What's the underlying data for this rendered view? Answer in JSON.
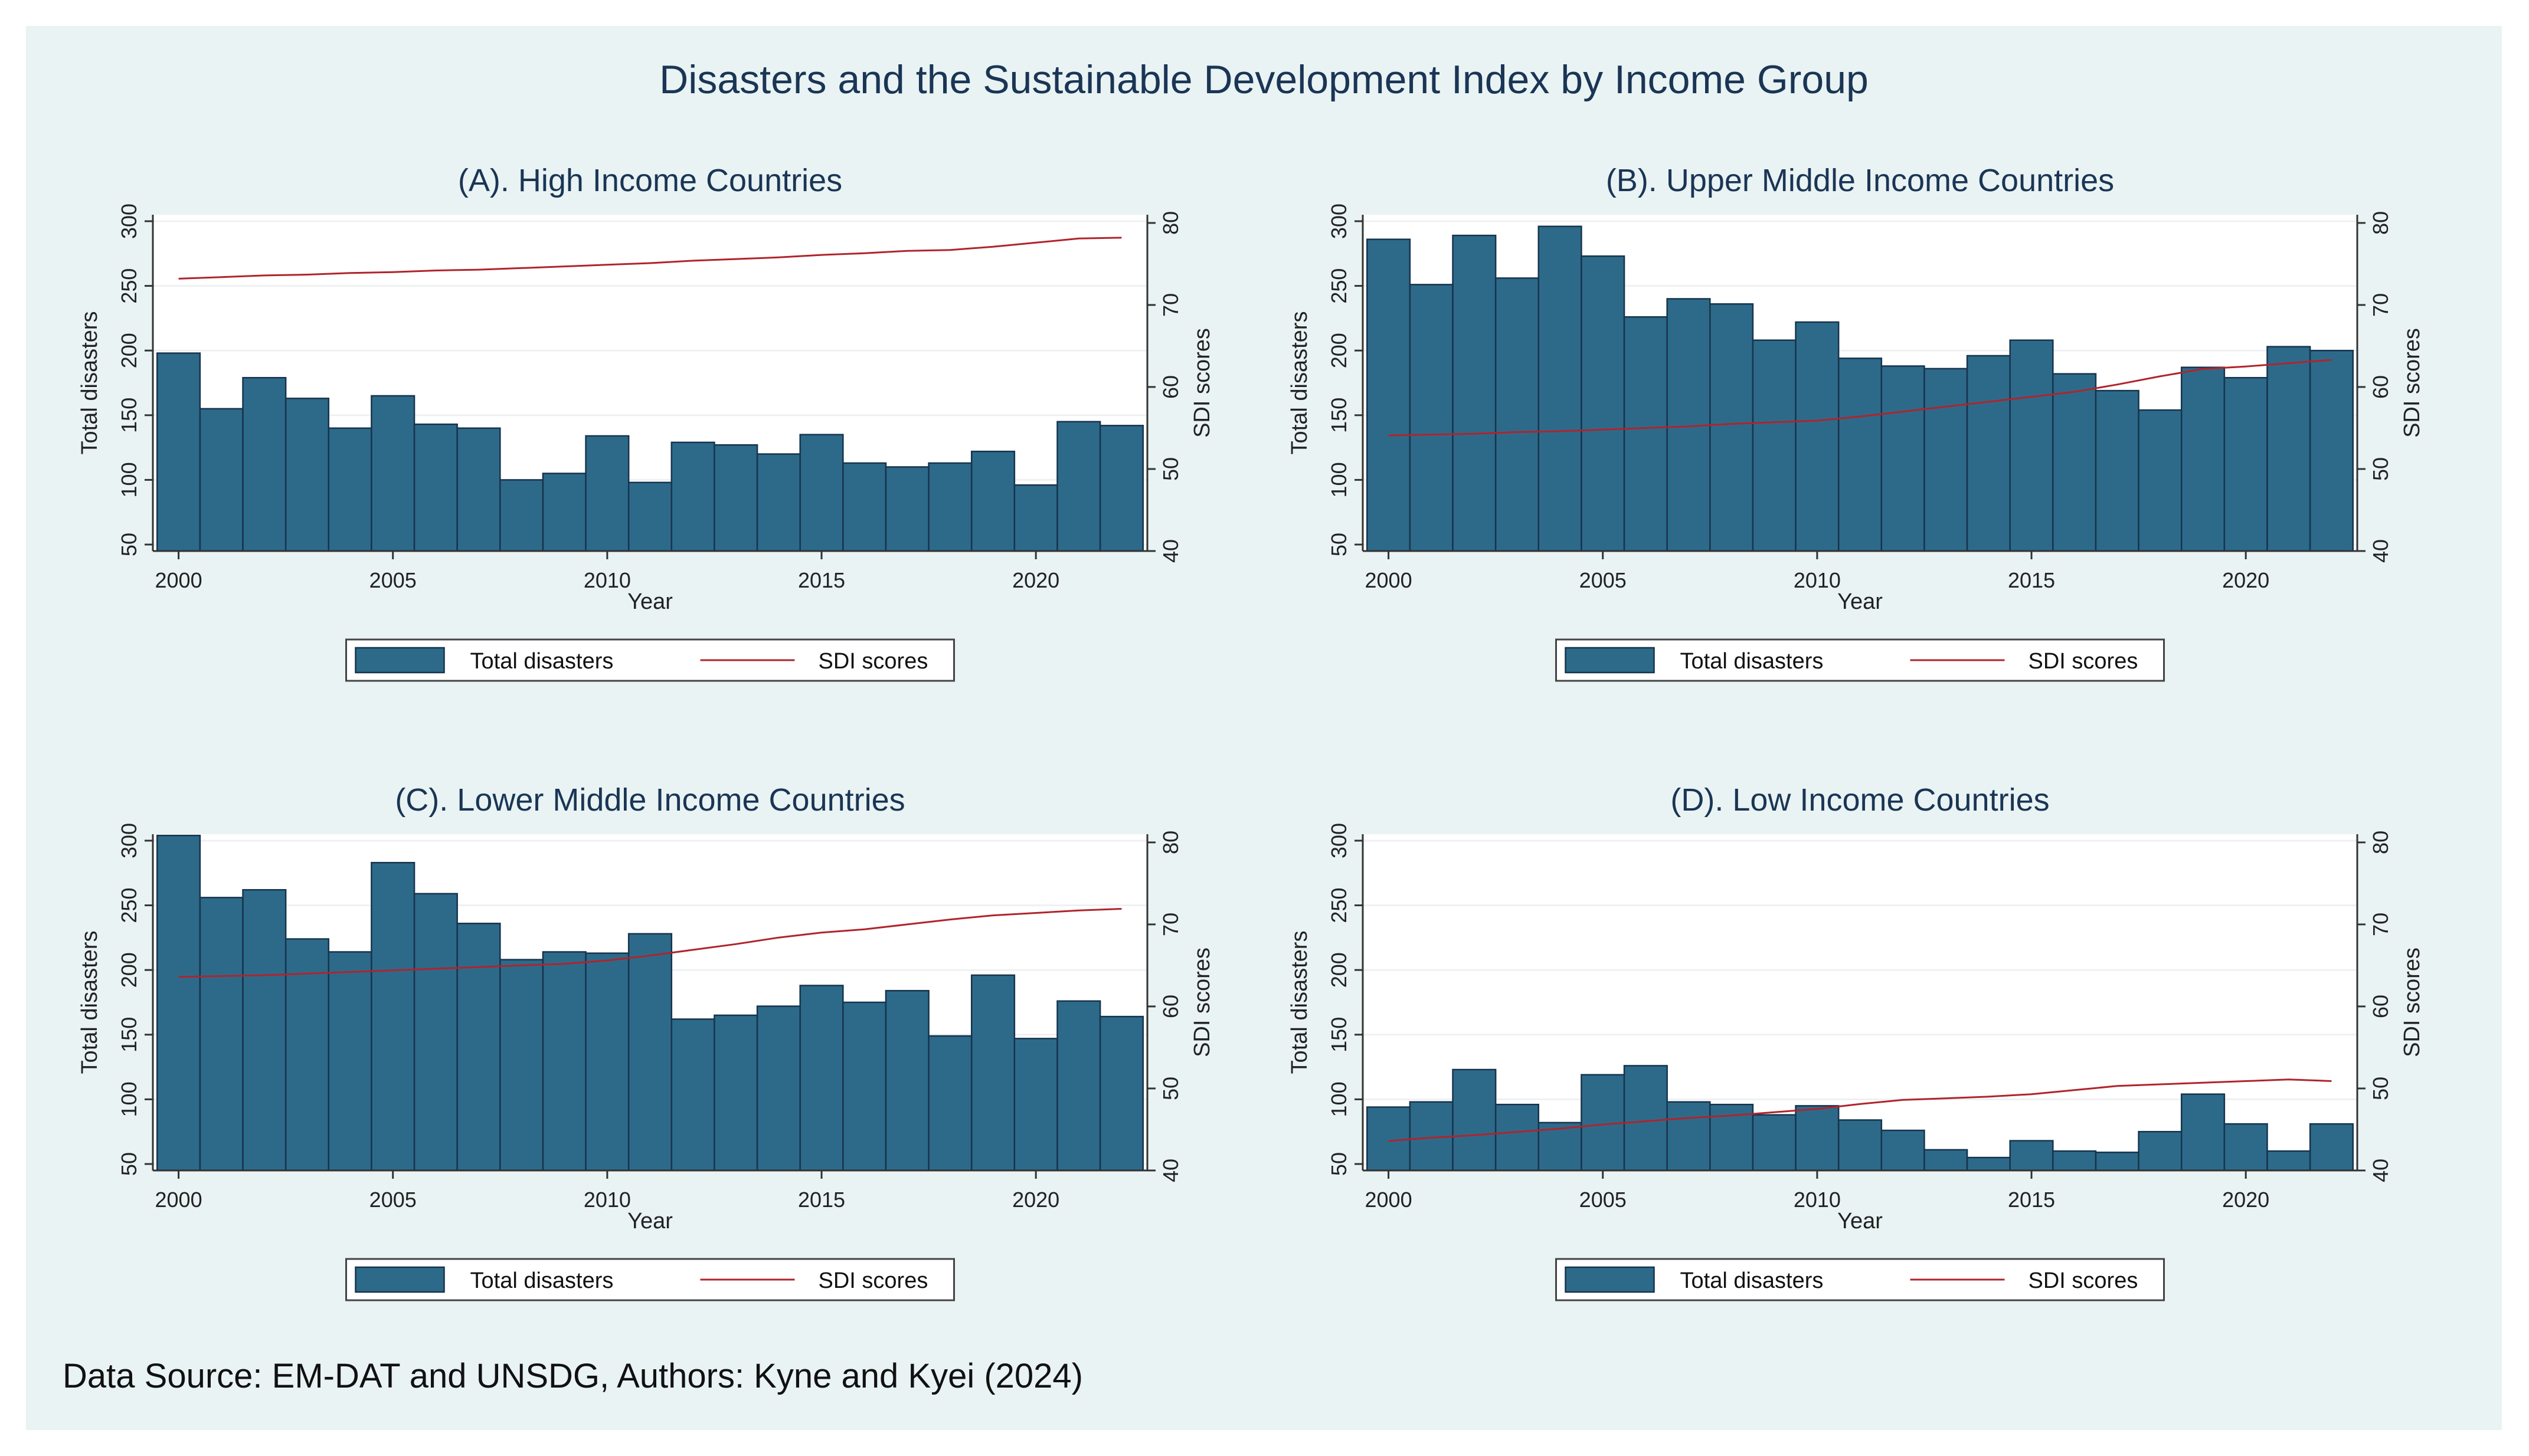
{
  "title": "Disasters and the Sustainable Development Index by Income Group",
  "source": "Data Source: EM-DAT and UNSDG, Authors: Kyne and Kyei (2024)",
  "colors": {
    "background": "#e9f3f3",
    "bar": "#2d6a8a",
    "bar_edge": "#17344d",
    "line": "#b0242c",
    "title": "#1a3555"
  },
  "chart_data": [
    {
      "type": "bar",
      "title": "(A). High Income Countries",
      "xlabel": "Year",
      "ylabel": "Total disasters",
      "y2label": "SDI scores",
      "x": [
        2000,
        2001,
        2002,
        2003,
        2004,
        2005,
        2006,
        2007,
        2008,
        2009,
        2010,
        2011,
        2012,
        2013,
        2014,
        2015,
        2016,
        2017,
        2018,
        2019,
        2020,
        2021,
        2022
      ],
      "xticks": [
        2000,
        2005,
        2010,
        2015,
        2020
      ],
      "ylim": [
        45,
        305
      ],
      "yticks": [
        50,
        100,
        150,
        200,
        250,
        300
      ],
      "y2lim": [
        40,
        81
      ],
      "y2ticks": [
        40,
        50,
        60,
        70,
        80
      ],
      "legend": [
        "Total disasters",
        "SDI scores"
      ],
      "series": [
        {
          "name": "Total disasters",
          "axis": "left",
          "values": [
            198,
            155,
            179,
            163,
            140,
            165,
            143,
            140,
            100,
            105,
            134,
            98,
            129,
            127,
            120,
            135,
            113,
            110,
            113,
            122,
            96,
            145,
            142
          ]
        },
        {
          "name": "SDI scores",
          "axis": "right",
          "values": [
            73.2,
            73.4,
            73.6,
            73.7,
            73.9,
            74.0,
            74.2,
            74.3,
            74.5,
            74.7,
            74.9,
            75.1,
            75.4,
            75.6,
            75.8,
            76.1,
            76.3,
            76.6,
            76.7,
            77.1,
            77.6,
            78.1,
            78.2
          ]
        }
      ]
    },
    {
      "type": "bar",
      "title": "(B). Upper Middle Income Countries",
      "xlabel": "Year",
      "ylabel": "Total disasters",
      "y2label": "SDI scores",
      "x": [
        2000,
        2001,
        2002,
        2003,
        2004,
        2005,
        2006,
        2007,
        2008,
        2009,
        2010,
        2011,
        2012,
        2013,
        2014,
        2015,
        2016,
        2017,
        2018,
        2019,
        2020,
        2021,
        2022
      ],
      "xticks": [
        2000,
        2005,
        2010,
        2015,
        2020
      ],
      "ylim": [
        45,
        305
      ],
      "yticks": [
        50,
        100,
        150,
        200,
        250,
        300
      ],
      "y2lim": [
        40,
        81
      ],
      "y2ticks": [
        40,
        50,
        60,
        70,
        80
      ],
      "legend": [
        "Total disasters",
        "SDI scores"
      ],
      "series": [
        {
          "name": "Total disasters",
          "axis": "left",
          "values": [
            286,
            251,
            289,
            256,
            296,
            273,
            226,
            240,
            236,
            208,
            222,
            194,
            188,
            186,
            196,
            208,
            182,
            169,
            154,
            187,
            179,
            203,
            200
          ]
        },
        {
          "name": "SDI scores",
          "axis": "right",
          "values": [
            54.1,
            54.2,
            54.3,
            54.5,
            54.6,
            54.8,
            55.0,
            55.2,
            55.5,
            55.7,
            55.9,
            56.4,
            57.0,
            57.6,
            58.2,
            58.8,
            59.4,
            60.3,
            61.3,
            62.2,
            62.5,
            62.9,
            63.3
          ]
        }
      ]
    },
    {
      "type": "bar",
      "title": "(C). Lower Middle Income Countries",
      "xlabel": "Year",
      "ylabel": "Total disasters",
      "y2label": "SDI scores",
      "x": [
        2000,
        2001,
        2002,
        2003,
        2004,
        2005,
        2006,
        2007,
        2008,
        2009,
        2010,
        2011,
        2012,
        2013,
        2014,
        2015,
        2016,
        2017,
        2018,
        2019,
        2020,
        2021,
        2022
      ],
      "xticks": [
        2000,
        2005,
        2010,
        2015,
        2020
      ],
      "ylim": [
        45,
        305
      ],
      "yticks": [
        50,
        100,
        150,
        200,
        250,
        300
      ],
      "y2lim": [
        40,
        81
      ],
      "y2ticks": [
        40,
        50,
        60,
        70,
        80
      ],
      "legend": [
        "Total disasters",
        "SDI scores"
      ],
      "series": [
        {
          "name": "Total disasters",
          "axis": "left",
          "values": [
            304,
            256,
            262,
            224,
            214,
            283,
            259,
            236,
            208,
            214,
            213,
            228,
            162,
            165,
            172,
            188,
            175,
            184,
            149,
            196,
            147,
            176,
            164
          ]
        },
        {
          "name": "SDI scores",
          "axis": "right",
          "values": [
            63.6,
            63.7,
            63.8,
            64.0,
            64.2,
            64.4,
            64.6,
            64.8,
            65.0,
            65.2,
            65.6,
            66.2,
            66.9,
            67.6,
            68.4,
            69.0,
            69.4,
            70.0,
            70.6,
            71.1,
            71.4,
            71.7,
            71.9
          ]
        }
      ]
    },
    {
      "type": "bar",
      "title": "(D). Low Income Countries",
      "xlabel": "Year",
      "ylabel": "Total disasters",
      "y2label": "SDI scores",
      "x": [
        2000,
        2001,
        2002,
        2003,
        2004,
        2005,
        2006,
        2007,
        2008,
        2009,
        2010,
        2011,
        2012,
        2013,
        2014,
        2015,
        2016,
        2017,
        2018,
        2019,
        2020,
        2021,
        2022
      ],
      "xticks": [
        2000,
        2005,
        2010,
        2015,
        2020
      ],
      "ylim": [
        45,
        305
      ],
      "yticks": [
        50,
        100,
        150,
        200,
        250,
        300
      ],
      "y2lim": [
        40,
        81
      ],
      "y2ticks": [
        40,
        50,
        60,
        70,
        80
      ],
      "legend": [
        "Total disasters",
        "SDI scores"
      ],
      "series": [
        {
          "name": "Total disasters",
          "axis": "left",
          "values": [
            94,
            98,
            123,
            96,
            82,
            119,
            126,
            98,
            96,
            88,
            95,
            84,
            76,
            61,
            55,
            68,
            60,
            59,
            75,
            104,
            81,
            60,
            81
          ]
        },
        {
          "name": "SDI scores",
          "axis": "right",
          "values": [
            43.6,
            44.0,
            44.3,
            44.7,
            45.1,
            45.6,
            46.0,
            46.4,
            46.7,
            47.1,
            47.5,
            48.1,
            48.6,
            48.8,
            49.0,
            49.3,
            49.8,
            50.3,
            50.5,
            50.7,
            50.9,
            51.1,
            50.9
          ]
        }
      ]
    }
  ]
}
